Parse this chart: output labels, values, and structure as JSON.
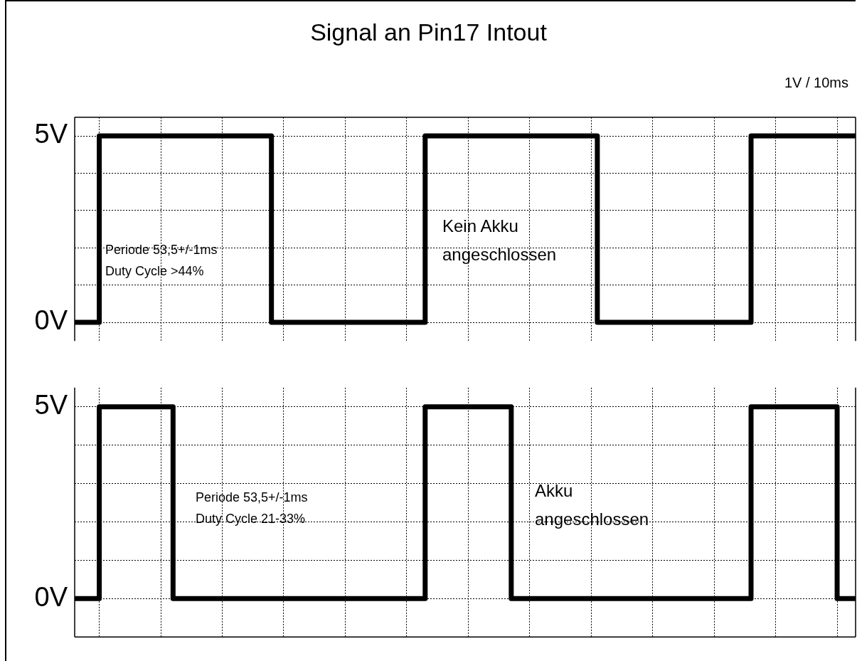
{
  "chart_data": [
    {
      "type": "step",
      "title": "Signal an Pin17 Intout",
      "annotations": [
        "1V / 10ms",
        "Periode 53,5+/-1ms\nDuty Cycle >44%",
        "Kein Akku\nangeschlossen"
      ],
      "categories": [
        null,
        null,
        null,
        null,
        null,
        null,
        null,
        null,
        null,
        null,
        null,
        null,
        null,
        null,
        null,
        null,
        null,
        null,
        null,
        null,
        null,
        null,
        null,
        null,
        null,
        null,
        null,
        null,
        null,
        null,
        null,
        null,
        null,
        null,
        null,
        null,
        null,
        null,
        null,
        null,
        null,
        null,
        null,
        null,
        null,
        null,
        null,
        null,
        null,
        null,
        null,
        null,
        null,
        null,
        null,
        null,
        null,
        null,
        null,
        null,
        null,
        null,
        null,
        null,
        null,
        null,
        null,
        null,
        null,
        null,
        null,
        null,
        null,
        null,
        null,
        null,
        null,
        null,
        null,
        null,
        null,
        null,
        null,
        null,
        null,
        null,
        null,
        null,
        null,
        null,
        null,
        null,
        null,
        null,
        null,
        null,
        null,
        null,
        null,
        null,
        null,
        null,
        null,
        null,
        null,
        null,
        null,
        null,
        null,
        null,
        null,
        null,
        null,
        null,
        null,
        null,
        null,
        null,
        null,
        null,
        null,
        null,
        null,
        null,
        null,
        null,
        null,
        null
      ],
      "series": [
        {
          "color": "#000000",
          "values": [
            0,
            0,
            0,
            0,
            5,
            5,
            5,
            5,
            5,
            5,
            5,
            5,
            5,
            5,
            5,
            5,
            5,
            5,
            5,
            5,
            5,
            5,
            5,
            5,
            5,
            5,
            5,
            5,
            5,
            5,
            5,
            5,
            0,
            0,
            0,
            0,
            0,
            0,
            0,
            0,
            0,
            0,
            0,
            0,
            0,
            0,
            0,
            0,
            0,
            0,
            0,
            0,
            0,
            0,
            0,
            0,
            0,
            5,
            5,
            5,
            5,
            5,
            5,
            5,
            5,
            5,
            5,
            5,
            5,
            5,
            5,
            5,
            5,
            5,
            5,
            5,
            5,
            5,
            5,
            5,
            5,
            5,
            5,
            5,
            5,
            0,
            0,
            0,
            0,
            0,
            0,
            0,
            0,
            0,
            0,
            0,
            0,
            0,
            0,
            0,
            0,
            0,
            0,
            0,
            0,
            0,
            0,
            0,
            0,
            0,
            5,
            5,
            5,
            5,
            5,
            5,
            5,
            5,
            5,
            5,
            5,
            5,
            5,
            5,
            5,
            5,
            5,
            5
          ]
        }
      ],
      "ylim": [
        -0.5,
        5.5
      ],
      "yticks": [
        {
          "value": 0,
          "label": "0V"
        },
        {
          "value": 1,
          "label": null
        },
        {
          "value": 2,
          "label": null
        },
        {
          "value": 3,
          "label": null
        },
        {
          "value": 4,
          "label": null
        },
        {
          "value": 5,
          "label": "5V"
        }
      ],
      "grid": true,
      "tick_labels": "y",
      "line_style": "solid"
    },
    {
      "type": "step",
      "annotations": [
        "Periode 53,5+/-1ms\nDuty Cycle 21-33%",
        "Akku\nangeschlossen"
      ],
      "categories": [
        null,
        null,
        null,
        null,
        null,
        null,
        null,
        null,
        null,
        null,
        null,
        null,
        null,
        null,
        null,
        null,
        null,
        null,
        null,
        null,
        null,
        null,
        null,
        null,
        null,
        null,
        null,
        null,
        null,
        null,
        null,
        null,
        null,
        null,
        null,
        null,
        null,
        null,
        null,
        null,
        null,
        null,
        null,
        null,
        null,
        null,
        null,
        null,
        null,
        null,
        null,
        null,
        null,
        null,
        null,
        null,
        null,
        null,
        null,
        null,
        null,
        null,
        null,
        null,
        null,
        null,
        null,
        null,
        null,
        null,
        null,
        null,
        null,
        null,
        null,
        null,
        null,
        null,
        null,
        null,
        null,
        null,
        null,
        null,
        null,
        null,
        null,
        null,
        null,
        null,
        null,
        null,
        null,
        null,
        null,
        null,
        null,
        null,
        null,
        null,
        null,
        null,
        null,
        null,
        null,
        null,
        null,
        null,
        null,
        null,
        null,
        null,
        null,
        null,
        null,
        null,
        null,
        null,
        null,
        null,
        null,
        null,
        null,
        null,
        null,
        null,
        null,
        null
      ],
      "series": [
        {
          "color": "#000000",
          "values": [
            0,
            0,
            0,
            0,
            5,
            5,
            5,
            5,
            5,
            5,
            5,
            5,
            5,
            5,
            5,
            5,
            0,
            0,
            0,
            0,
            0,
            0,
            0,
            0,
            0,
            0,
            0,
            0,
            0,
            0,
            0,
            0,
            0,
            0,
            0,
            0,
            0,
            0,
            0,
            0,
            0,
            0,
            0,
            0,
            0,
            0,
            0,
            0,
            0,
            0,
            0,
            0,
            0,
            0,
            0,
            0,
            0,
            5,
            5,
            5,
            5,
            5,
            5,
            5,
            5,
            5,
            5,
            5,
            5,
            5,
            5,
            0,
            0,
            0,
            0,
            0,
            0,
            0,
            0,
            0,
            0,
            0,
            0,
            0,
            0,
            0,
            0,
            0,
            0,
            0,
            0,
            0,
            0,
            0,
            0,
            0,
            0,
            0,
            0,
            0,
            0,
            0,
            0,
            0,
            0,
            0,
            0,
            0,
            0,
            0,
            5,
            5,
            5,
            5,
            5,
            5,
            5,
            5,
            5,
            5,
            5,
            5,
            5,
            5,
            0,
            0,
            0,
            0
          ]
        }
      ],
      "ylim": [
        -1,
        5.5
      ],
      "yticks": [
        {
          "value": 0,
          "label": "0V"
        },
        {
          "value": 1,
          "label": null
        },
        {
          "value": 2,
          "label": null
        },
        {
          "value": 3,
          "label": null
        },
        {
          "value": 4,
          "label": null
        },
        {
          "value": 5,
          "label": "5V"
        }
      ],
      "grid": true,
      "tick_labels": "y",
      "line_style": "solid"
    }
  ]
}
